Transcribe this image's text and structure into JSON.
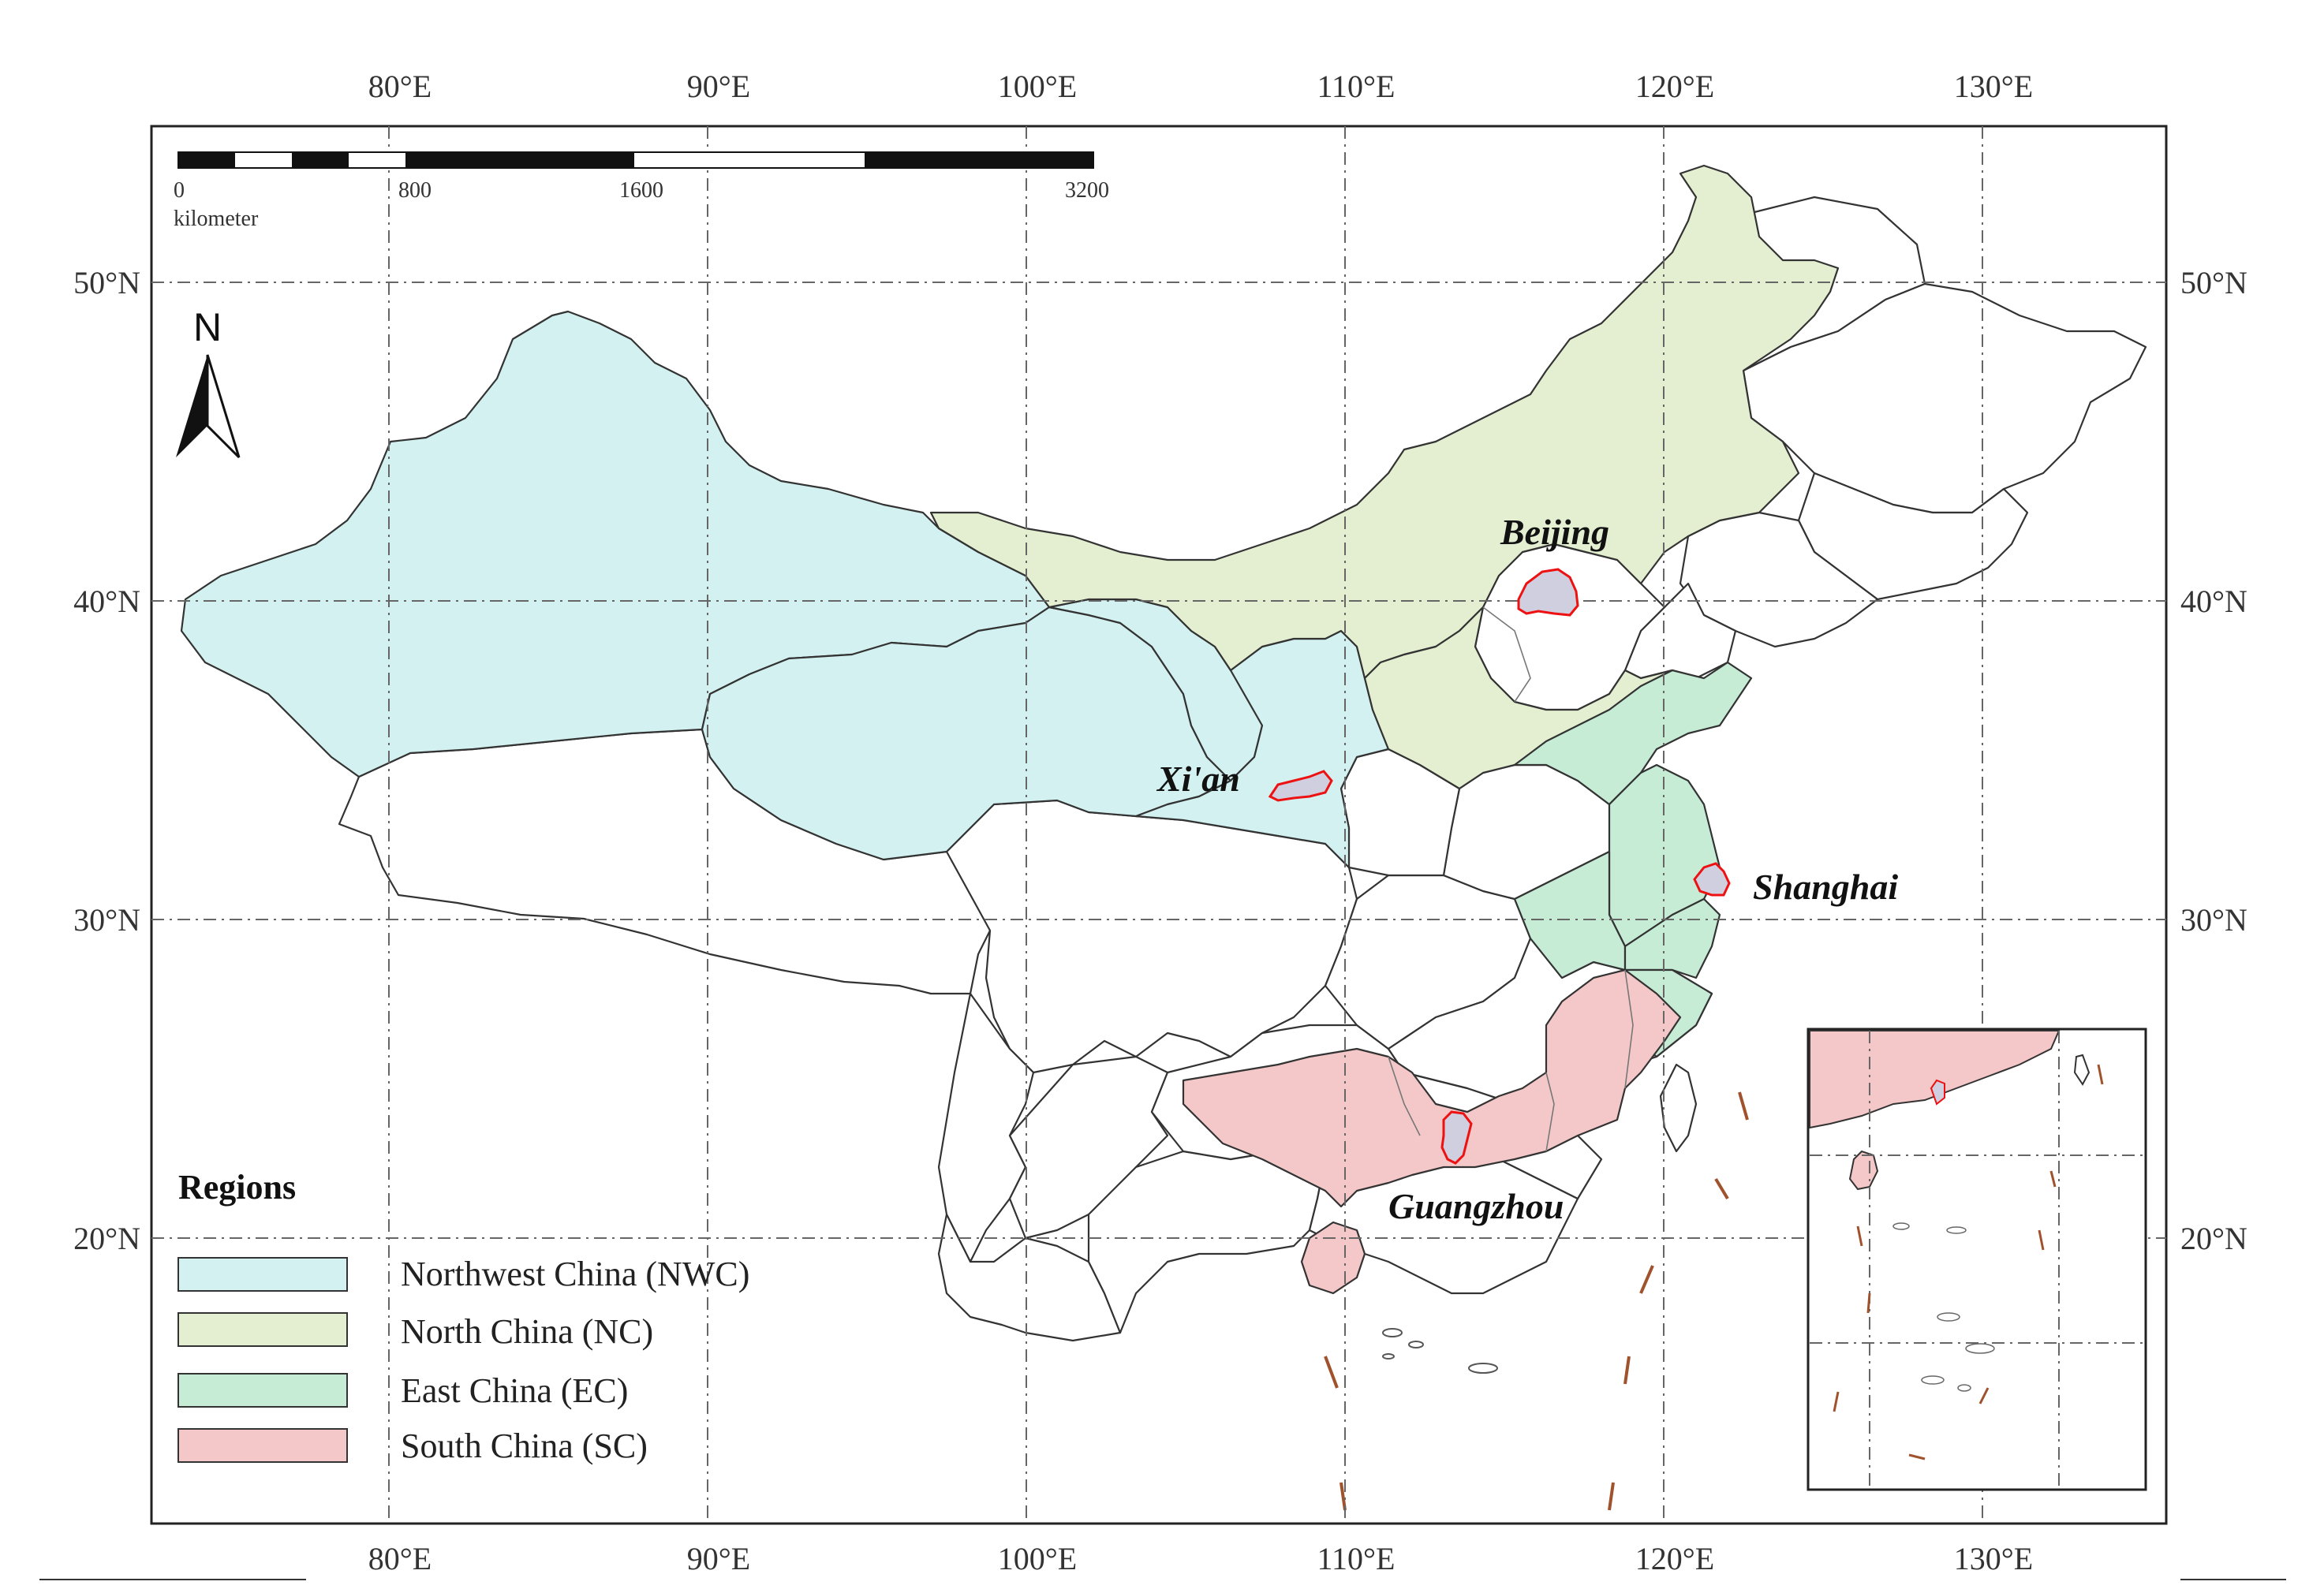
{
  "map": {
    "lon_ticks": [
      "80°E",
      "90°E",
      "100°E",
      "110°E",
      "120°E",
      "130°E"
    ],
    "lat_ticks": [
      "50°N",
      "40°N",
      "30°N",
      "20°N"
    ],
    "scale_bar": {
      "labels": [
        "0",
        "800",
        "1600",
        "3200"
      ],
      "unit": "kilometer"
    },
    "north_arrow": {
      "label": "N",
      "icon": "north-arrow-icon"
    },
    "cities": [
      "Beijing",
      "Xi'an",
      "Shanghai",
      "Guangzhou"
    ],
    "legend": {
      "title": "Regions",
      "items": [
        {
          "label": "Northwest China (NWC)",
          "color": "#d2f1f0"
        },
        {
          "label": "North China (NC)",
          "color": "#e3efd0"
        },
        {
          "label": "East China (EC)",
          "color": "#c6ecd6"
        },
        {
          "label": "South China (SC)",
          "color": "#f4c8c8"
        }
      ]
    },
    "colors": {
      "unshaded_province": "#ffffff",
      "city_outline": "#e11111",
      "dash_line": "#a0522d"
    },
    "inset": {
      "present": true,
      "description_visible": false
    }
  }
}
